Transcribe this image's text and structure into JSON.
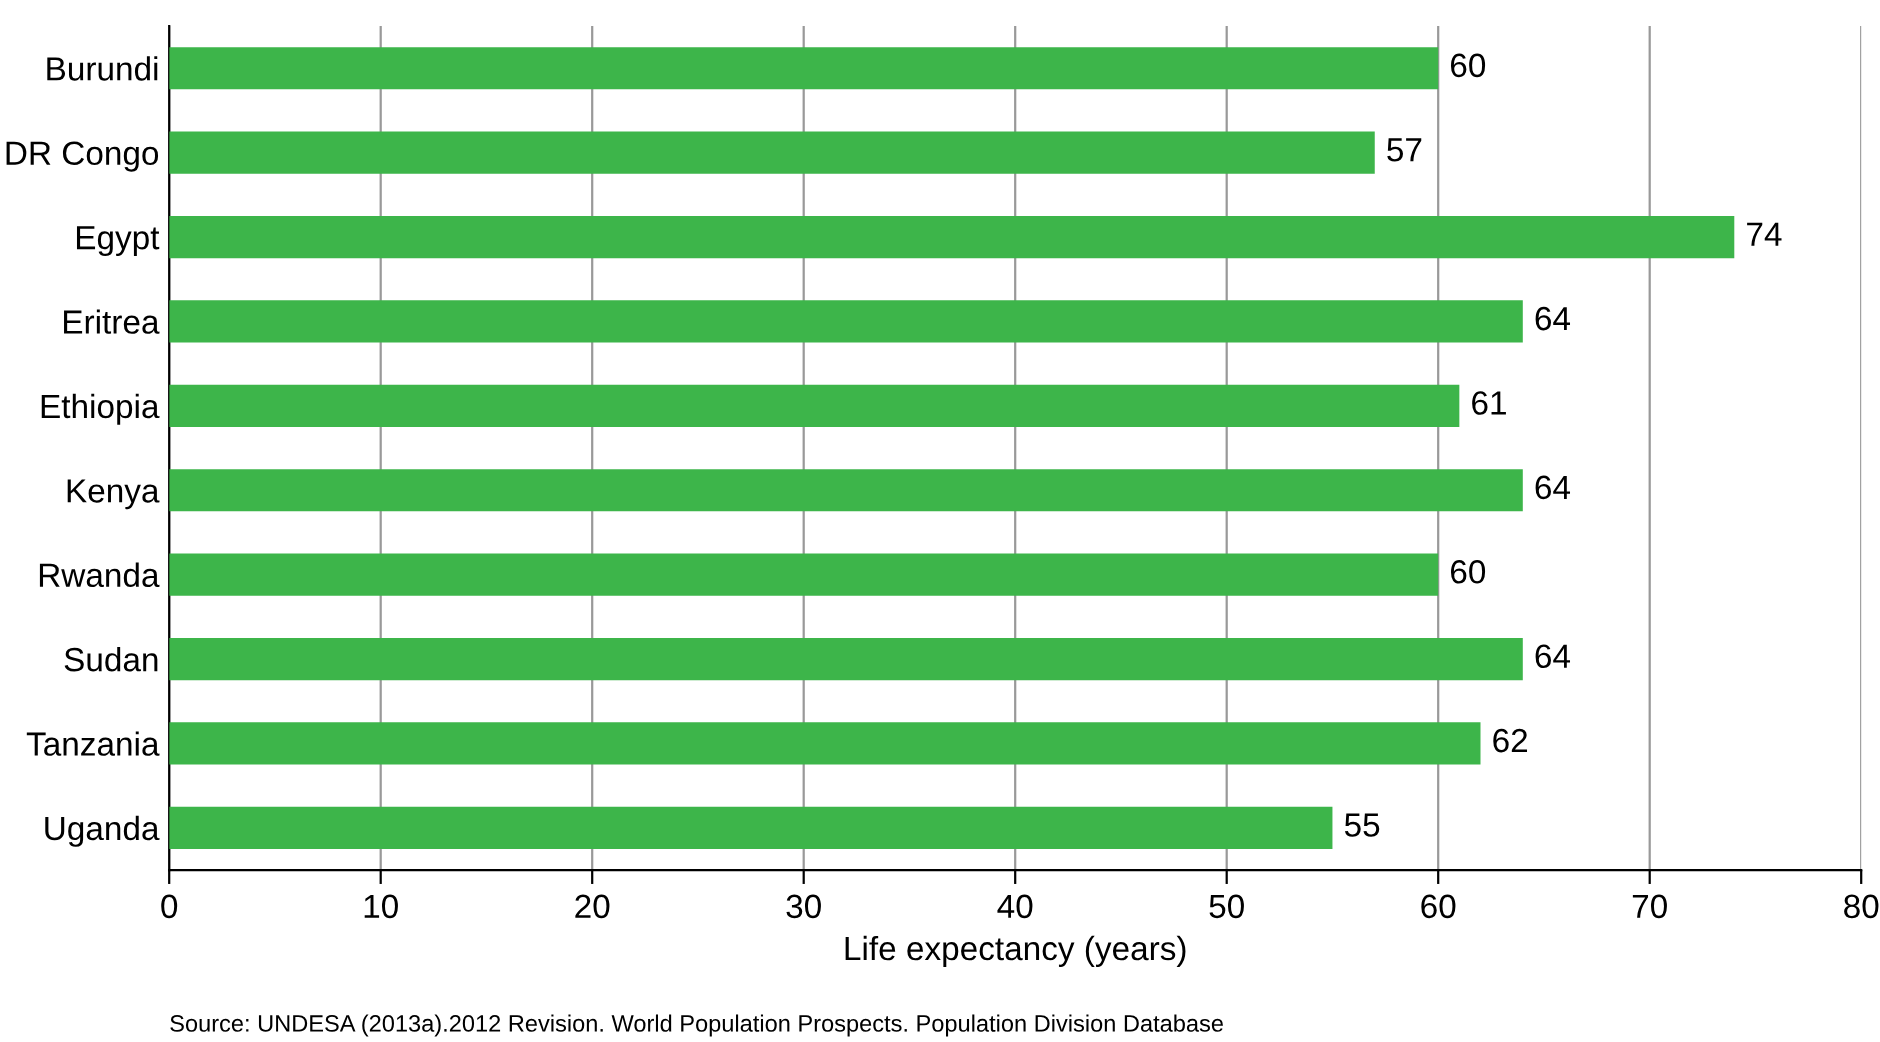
{
  "chart_data": {
    "type": "bar",
    "orientation": "horizontal",
    "categories": [
      "Burundi",
      "DR Congo",
      "Egypt",
      "Eritrea",
      "Ethiopia",
      "Kenya",
      "Rwanda",
      "Sudan",
      "Tanzania",
      "Uganda"
    ],
    "values": [
      60,
      57,
      74,
      64,
      61,
      64,
      60,
      64,
      62,
      55
    ],
    "color": "#3db54a",
    "xlabel": "Life expectancy (years)",
    "xlim": [
      0,
      80
    ],
    "xticks": [
      0,
      10,
      20,
      30,
      40,
      50,
      60,
      70,
      80
    ],
    "grid": "x",
    "data_labels": true,
    "annotations": [
      "Source: UNDESA (2013a).2012 Revision. World Population Prospects. Population Division Database"
    ]
  }
}
